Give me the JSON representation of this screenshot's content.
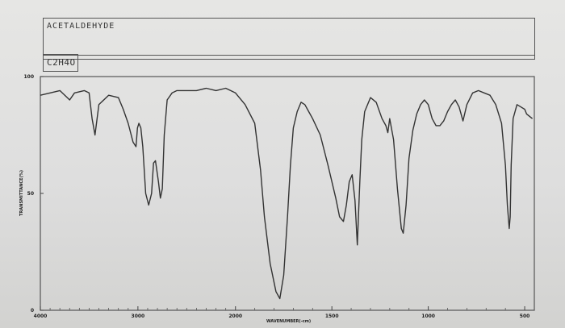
{
  "header": {
    "compound_name": "ACETALDEHYDE",
    "formula": "C2H4O"
  },
  "chart_data": {
    "type": "line",
    "title": "ACETALDEHYDE",
    "subtitle": "C2H4O",
    "xlabel": "WAVENUMBER(-cm)",
    "ylabel": "TRANSMITTANCE(%)",
    "x_scale": "compressed-above-2000",
    "xlim": [
      4000,
      450
    ],
    "ylim": [
      0,
      100
    ],
    "x_ticks": [
      {
        "value": 4000,
        "label": "4000"
      },
      {
        "value": 3000,
        "label": "3000"
      },
      {
        "value": 2000,
        "label": "2000"
      },
      {
        "value": 1500,
        "label": "1500"
      },
      {
        "value": 1000,
        "label": "1000"
      },
      {
        "value": 500,
        "label": "500"
      }
    ],
    "y_ticks": [
      {
        "value": 0,
        "label": "0"
      },
      {
        "value": 50,
        "label": "50"
      },
      {
        "value": 100,
        "label": "100"
      }
    ],
    "grid": false,
    "series": [
      {
        "name": "",
        "color": "#333333",
        "x": [
          4000,
          3900,
          3800,
          3700,
          3650,
          3550,
          3500,
          3470,
          3440,
          3400,
          3300,
          3200,
          3150,
          3100,
          3050,
          3020,
          3005,
          2990,
          2970,
          2950,
          2920,
          2890,
          2860,
          2840,
          2820,
          2790,
          2770,
          2750,
          2730,
          2700,
          2650,
          2600,
          2500,
          2400,
          2300,
          2200,
          2100,
          2000,
          1950,
          1900,
          1870,
          1850,
          1820,
          1790,
          1770,
          1750,
          1730,
          1715,
          1700,
          1680,
          1660,
          1640,
          1620,
          1600,
          1560,
          1520,
          1480,
          1460,
          1440,
          1425,
          1410,
          1395,
          1380,
          1368,
          1355,
          1345,
          1330,
          1300,
          1270,
          1240,
          1220,
          1210,
          1200,
          1180,
          1160,
          1140,
          1130,
          1115,
          1100,
          1080,
          1060,
          1040,
          1020,
          1000,
          980,
          960,
          940,
          920,
          900,
          880,
          860,
          840,
          820,
          800,
          770,
          740,
          710,
          680,
          650,
          620,
          600,
          590,
          580,
          575,
          570,
          560,
          540,
          520,
          500,
          490,
          460
        ],
        "y": [
          92,
          93,
          94,
          90,
          93,
          94,
          93,
          82,
          75,
          88,
          92,
          91,
          86,
          80,
          72,
          70,
          78,
          80,
          78,
          70,
          50,
          45,
          50,
          63,
          64,
          55,
          48,
          52,
          75,
          90,
          93,
          94,
          94,
          94,
          95,
          94,
          95,
          93,
          88,
          80,
          60,
          40,
          20,
          8,
          5,
          15,
          40,
          62,
          78,
          85,
          89,
          88,
          85,
          82,
          75,
          62,
          48,
          40,
          38,
          45,
          55,
          58,
          47,
          28,
          55,
          73,
          85,
          91,
          89,
          82,
          79,
          76,
          82,
          73,
          52,
          35,
          33,
          45,
          65,
          77,
          84,
          88,
          90,
          88,
          82,
          79,
          79,
          81,
          85,
          88,
          90,
          87,
          81,
          88,
          93,
          94,
          93,
          92,
          88,
          80,
          62,
          45,
          35,
          40,
          62,
          82,
          88,
          87,
          86,
          84,
          82
        ]
      }
    ]
  }
}
